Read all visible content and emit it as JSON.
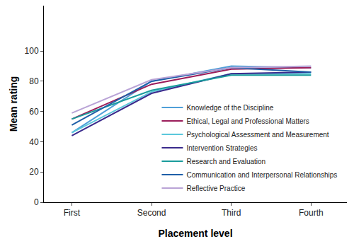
{
  "chart_data": {
    "type": "line",
    "x_label": "Placement level",
    "y_label": "Mean rating",
    "categories": [
      "First",
      "Second",
      "Third",
      "Fourth"
    ],
    "series": [
      {
        "name": "Knowledge of the Discipline",
        "color": "#4f9fd8",
        "values": [
          46,
          80,
          90,
          89
        ]
      },
      {
        "name": "Ethical, Legal and Professional Matters",
        "color": "#9b1d5a",
        "values": [
          55,
          78,
          88,
          89
        ]
      },
      {
        "name": "Psychological Assessment and Measurement",
        "color": "#5bc8dc",
        "values": [
          46,
          73,
          85,
          85
        ]
      },
      {
        "name": "Intervention Strategies",
        "color": "#3a2a8c",
        "values": [
          44,
          72,
          85,
          86
        ]
      },
      {
        "name": "Research and Evaluation",
        "color": "#1a9c9c",
        "values": [
          55,
          74,
          84,
          84
        ]
      },
      {
        "name": "Communication and Interpersonal Relationships",
        "color": "#1f5fa8",
        "values": [
          51,
          80,
          89,
          86
        ]
      },
      {
        "name": "Reflective Practice",
        "color": "#b9a3d6",
        "values": [
          59,
          81,
          89,
          90
        ]
      }
    ],
    "ylim": [
      0,
      130
    ],
    "yticks": [
      0,
      20,
      40,
      60,
      80,
      100
    ],
    "grid": false,
    "legend": "lower right"
  }
}
